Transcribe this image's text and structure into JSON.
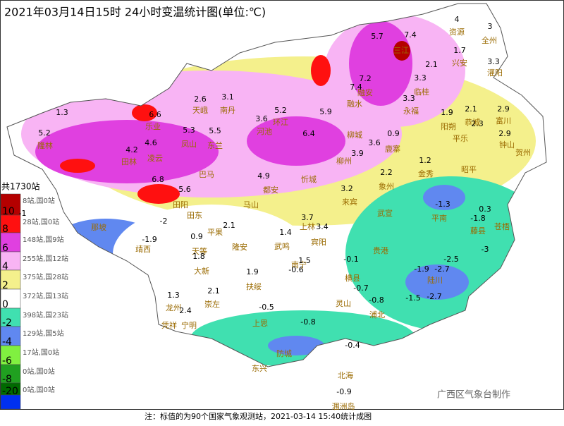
{
  "title": "2021年03月14日15时  24小时变温统计图(单位:℃)",
  "legend": {
    "total": "共1730站",
    "classes": [
      {
        "color": "#b40000",
        "count": "8站,国0站"
      },
      {
        "color": "#ff1010",
        "count": "28站,国0站"
      },
      {
        "color": "#e040e0",
        "count": "148站,国9站"
      },
      {
        "color": "#f8b4f4",
        "count": "255站,国12站"
      },
      {
        "color": "#f4f08c",
        "count": "375站,国28站"
      },
      {
        "color": "#ffffff",
        "count": "372站,国13站"
      },
      {
        "color": "#40e0b0",
        "count": "398站,国23站"
      },
      {
        "color": "#6088f0",
        "count": "129站,国5站"
      },
      {
        "color": "#80f040",
        "count": "17站,国0站"
      },
      {
        "color": "#20a020",
        "count": "0站,国0站"
      },
      {
        "color": "#006a00",
        "count": "0站,国0站"
      },
      {
        "color": "#0030f0",
        "count": ""
      }
    ],
    "bounds": [
      10,
      8,
      6,
      4,
      2,
      0,
      -2,
      -4,
      -6,
      -8,
      -20
    ]
  },
  "place_names": [
    "资源",
    "全州",
    "兴安",
    "灌阳",
    "三江",
    "融安",
    "融水",
    "临桂",
    "永福",
    "天峨",
    "南丹",
    "环江",
    "河池",
    "乐业",
    "隆林",
    "凤山",
    "东兰",
    "柳城",
    "鹿寨",
    "阳朔",
    "平乐",
    "恭城",
    "富川",
    "钟山",
    "贺州",
    "凌云",
    "田林",
    "巴马",
    "柳州",
    "忻城",
    "象州",
    "金秀",
    "昭平",
    "都安",
    "马山",
    "来宾",
    "武宣",
    "田阳",
    "田东",
    "那坡",
    "靖西",
    "平果",
    "隆安",
    "上林",
    "宾阳",
    "武鸣",
    "贵港",
    "平南",
    "藤县",
    "苍梧",
    "天等",
    "大新",
    "南宁",
    "横县",
    "扶绥",
    "崇左",
    "龙州",
    "宁明",
    "凭祥",
    "上思",
    "灵山",
    "浦北",
    "陆川",
    "防城",
    "东兴",
    "北海",
    "涠洲岛"
  ],
  "station_values": [
    5.7,
    7.4,
    4,
    3,
    1.7,
    2.1,
    3.3,
    7.2,
    7.4,
    3.3,
    3.3,
    2.6,
    3.1,
    3.6,
    5.2,
    5.9,
    1.3,
    6.6,
    5.2,
    5.3,
    5.5,
    6.4,
    3.6,
    0.9,
    1.9,
    2.1,
    2.9,
    2.9,
    2.3,
    4.2,
    4.6,
    3.9,
    2.2,
    1.2,
    6.8,
    5.6,
    4.9,
    3.2,
    0.3,
    -1.8,
    -1.3,
    3.7,
    3.4,
    1.4,
    2.1,
    0.9,
    -1.9,
    -1,
    -2,
    1.5,
    -0.6,
    -0.1,
    1.9,
    2.1,
    1.3,
    2.4,
    -0.7,
    -1.5,
    -2.7,
    -0.8,
    -0.5,
    -0.8,
    -1.9,
    -2.7,
    -2.5,
    -3,
    -0.4,
    -0.9,
    1.8
  ],
  "credit": "广西区气象台制作",
  "footnote": "注：标值的为90个国家气象观测站，2021-03-14 15:40统计成图"
}
